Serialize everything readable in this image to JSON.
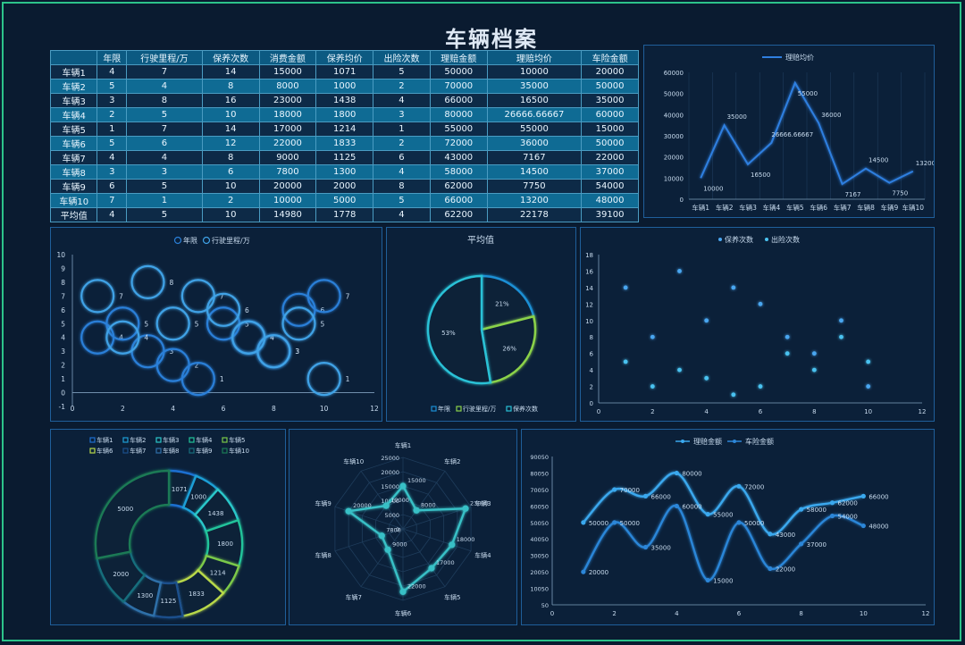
{
  "title": "车辆档案",
  "table": {
    "headers": [
      "",
      "年限",
      "行驶里程/万",
      "保养次数",
      "消费金额",
      "保养均价",
      "出险次数",
      "理赔金额",
      "理赔均价",
      "车险金额"
    ],
    "rows": [
      [
        "车辆1",
        "4",
        "7",
        "14",
        "15000",
        "1071",
        "5",
        "50000",
        "10000",
        "20000"
      ],
      [
        "车辆2",
        "5",
        "4",
        "8",
        "8000",
        "1000",
        "2",
        "70000",
        "35000",
        "50000"
      ],
      [
        "车辆3",
        "3",
        "8",
        "16",
        "23000",
        "1438",
        "4",
        "66000",
        "16500",
        "35000"
      ],
      [
        "车辆4",
        "2",
        "5",
        "10",
        "18000",
        "1800",
        "3",
        "80000",
        "26666.66667",
        "60000"
      ],
      [
        "车辆5",
        "1",
        "7",
        "14",
        "17000",
        "1214",
        "1",
        "55000",
        "55000",
        "15000"
      ],
      [
        "车辆6",
        "5",
        "6",
        "12",
        "22000",
        "1833",
        "2",
        "72000",
        "36000",
        "50000"
      ],
      [
        "车辆7",
        "4",
        "4",
        "8",
        "9000",
        "1125",
        "6",
        "43000",
        "7167",
        "22000"
      ],
      [
        "车辆8",
        "3",
        "3",
        "6",
        "7800",
        "1300",
        "4",
        "58000",
        "14500",
        "37000"
      ],
      [
        "车辆9",
        "6",
        "5",
        "10",
        "20000",
        "2000",
        "8",
        "62000",
        "7750",
        "54000"
      ],
      [
        "车辆10",
        "7",
        "1",
        "2",
        "10000",
        "5000",
        "5",
        "66000",
        "13200",
        "48000"
      ],
      [
        "平均值",
        "4",
        "5",
        "10",
        "14980",
        "1778",
        "4",
        "62200",
        "22178",
        "39100"
      ]
    ]
  },
  "chart_data": [
    {
      "type": "line",
      "series": [
        {
          "name": "理赔均价",
          "values": [
            10000,
            35000,
            16500,
            26666.66667,
            55000,
            36000,
            7167,
            14500,
            7750,
            13200
          ]
        }
      ],
      "categories": [
        "车辆1",
        "车辆2",
        "车辆3",
        "车辆4",
        "车辆5",
        "车辆6",
        "车辆7",
        "车辆8",
        "车辆9",
        "车辆10"
      ],
      "data_labels": [
        "10000",
        "35000",
        "16500",
        "26666.66667",
        "55000",
        "36000",
        "7167",
        "14500",
        "7750",
        "13200"
      ],
      "yticks": [
        "0",
        "10000",
        "20000",
        "30000",
        "40000",
        "50000",
        "60000"
      ],
      "ylim": [
        0,
        60000
      ],
      "legend": "top"
    },
    {
      "type": "scatter",
      "subtype": "bubble",
      "series": [
        {
          "name": "年限",
          "x": [
            1,
            2,
            3,
            4,
            5,
            6,
            7,
            8,
            9,
            10
          ],
          "y": [
            4,
            5,
            3,
            2,
            1,
            5,
            4,
            3,
            6,
            7
          ],
          "labels": [
            "4",
            "5",
            "3",
            "2",
            "1",
            "5",
            "4",
            "3",
            "6",
            "7"
          ]
        },
        {
          "name": "行驶里程/万",
          "x": [
            1,
            2,
            3,
            4,
            5,
            6,
            7,
            8,
            9,
            10
          ],
          "y": [
            7,
            4,
            8,
            5,
            7,
            6,
            4,
            3,
            5,
            1
          ],
          "labels": [
            "7",
            "4",
            "8",
            "5",
            "7",
            "6",
            "4",
            "3",
            "5",
            "1"
          ]
        }
      ],
      "xticks": [
        "0",
        "2",
        "4",
        "6",
        "8",
        "10",
        "12"
      ],
      "yticks": [
        "-1",
        "0",
        "1",
        "2",
        "3",
        "4",
        "5",
        "6",
        "7",
        "8",
        "9",
        "10"
      ],
      "xlim": [
        0,
        12
      ],
      "ylim": [
        -1,
        10
      ],
      "legend": "top"
    },
    {
      "type": "pie",
      "title": "平均值",
      "categories": [
        "年限",
        "行驶里程/万",
        "保养次数"
      ],
      "values": [
        4,
        5,
        10
      ],
      "labels": [
        "21%",
        "26%",
        "53%"
      ],
      "legend": "bottom"
    },
    {
      "type": "scatter",
      "series": [
        {
          "name": "保养次数",
          "x": [
            1,
            2,
            3,
            4,
            5,
            6,
            7,
            8,
            9,
            10
          ],
          "y": [
            14,
            8,
            16,
            10,
            14,
            12,
            8,
            6,
            10,
            2
          ]
        },
        {
          "name": "出险次数",
          "x": [
            1,
            2,
            3,
            4,
            5,
            6,
            7,
            8,
            9,
            10
          ],
          "y": [
            5,
            2,
            4,
            3,
            1,
            2,
            6,
            4,
            8,
            5
          ]
        }
      ],
      "xticks": [
        "0",
        "2",
        "4",
        "6",
        "8",
        "10",
        "12"
      ],
      "yticks": [
        "0",
        "2",
        "4",
        "6",
        "8",
        "10",
        "12",
        "14",
        "16",
        "18"
      ],
      "xlim": [
        0,
        12
      ],
      "ylim": [
        0,
        18
      ],
      "legend": "top"
    },
    {
      "type": "pie",
      "subtype": "doughnut",
      "categories": [
        "车辆1",
        "车辆2",
        "车辆3",
        "车辆4",
        "车辆5",
        "车辆6",
        "车辆7",
        "车辆8",
        "车辆9",
        "车辆10"
      ],
      "values": [
        1071,
        1000,
        1438,
        1800,
        1214,
        1833,
        1125,
        1300,
        2000,
        5000
      ],
      "labels": [
        "1071",
        "1000",
        "1438",
        "1800",
        "1214",
        "1833",
        "1125",
        "1300",
        "2000",
        "5000"
      ],
      "colors": [
        "#1f6fd1",
        "#1e9fd6",
        "#2bc7c9",
        "#22c39a",
        "#7bc949",
        "#b8d84a",
        "#1a4f8c",
        "#2f6fa8",
        "#176e7c",
        "#1b7a55"
      ],
      "legend": "top"
    },
    {
      "type": "radar",
      "categories": [
        "车辆1",
        "车辆2",
        "车辆3",
        "车辆4",
        "车辆5",
        "车辆6",
        "车辆7",
        "车辆8",
        "车辆9",
        "车辆10"
      ],
      "values": [
        15000,
        8000,
        23000,
        18000,
        17000,
        22000,
        9000,
        7800,
        20000,
        10000
      ],
      "data_labels": [
        "15000",
        "8000",
        "23000",
        "18000",
        "17000",
        "22000",
        "9000",
        "7800",
        "20000",
        "10000"
      ],
      "rticks": [
        "0",
        "5000",
        "10000",
        "15000",
        "20000",
        "25000"
      ],
      "rlim": [
        0,
        25000
      ]
    },
    {
      "type": "line",
      "smooth": true,
      "series": [
        {
          "name": "理赔金额",
          "x": [
            1,
            2,
            3,
            4,
            5,
            6,
            7,
            8,
            9,
            10
          ],
          "values": [
            50000,
            70000,
            66000,
            80000,
            55000,
            72000,
            43000,
            58000,
            62000,
            66000
          ]
        },
        {
          "name": "车险金额",
          "x": [
            1,
            2,
            3,
            4,
            5,
            6,
            7,
            8,
            9,
            10
          ],
          "values": [
            20000,
            50000,
            35000,
            60000,
            15000,
            50000,
            22000,
            37000,
            54000,
            48000
          ]
        }
      ],
      "xticks": [
        "0",
        "2",
        "4",
        "6",
        "8",
        "10",
        "12"
      ],
      "yticks": [
        "50",
        "10050",
        "20050",
        "30050",
        "40050",
        "50050",
        "60050",
        "70050",
        "80050",
        "90050"
      ],
      "xlim": [
        0,
        12
      ],
      "ylim": [
        50,
        90050
      ],
      "legend": "top"
    }
  ]
}
